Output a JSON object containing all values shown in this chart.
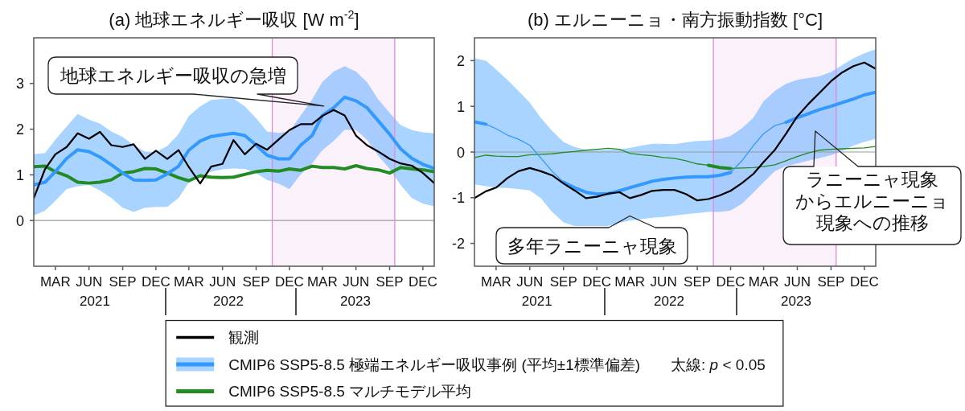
{
  "chart_data": [
    {
      "type": "line",
      "title": "(a) 地球エネルギー吸収 [W m$^{-2}$]",
      "x": [
        "2021-01",
        "2021-02",
        "2021-03",
        "2021-04",
        "2021-05",
        "2021-06",
        "2021-07",
        "2021-08",
        "2021-09",
        "2021-10",
        "2021-11",
        "2021-12",
        "2022-01",
        "2022-02",
        "2022-03",
        "2022-04",
        "2022-05",
        "2022-06",
        "2022-07",
        "2022-08",
        "2022-09",
        "2022-10",
        "2022-11",
        "2022-12",
        "2023-01",
        "2023-02",
        "2023-03",
        "2023-04",
        "2023-05",
        "2023-06",
        "2023-07",
        "2023-08",
        "2023-09",
        "2023-10",
        "2023-11",
        "2023-12",
        "2024-01"
      ],
      "xlim": [
        "2021-01",
        "2024-01"
      ],
      "xticks": [
        {
          "value": "2021-03",
          "label": "MAR"
        },
        {
          "value": "2021-06",
          "label": "JUN"
        },
        {
          "value": "2021-09",
          "label": "SEP"
        },
        {
          "value": "2021-12",
          "label": "DEC"
        },
        {
          "value": "2022-03",
          "label": "MAR"
        },
        {
          "value": "2022-06",
          "label": "JUN"
        },
        {
          "value": "2022-09",
          "label": "SEP"
        },
        {
          "value": "2022-12",
          "label": "DEC"
        },
        {
          "value": "2023-03",
          "label": "MAR"
        },
        {
          "value": "2023-06",
          "label": "JUN"
        },
        {
          "value": "2023-09",
          "label": "SEP"
        },
        {
          "value": "2023-12",
          "label": "DEC"
        }
      ],
      "ylim": [
        -1,
        4
      ],
      "yticks": [
        0,
        1,
        2,
        3
      ],
      "series": [
        {
          "name": "観測",
          "color": "#000000",
          "values": [
            0.49,
            1.13,
            1.45,
            1.61,
            1.91,
            1.79,
            1.94,
            1.65,
            1.61,
            1.67,
            1.35,
            1.53,
            1.35,
            1.54,
            1.17,
            0.81,
            1.18,
            1.24,
            1.76,
            1.45,
            1.68,
            1.55,
            1.77,
            1.98,
            2.11,
            2.11,
            2.29,
            2.42,
            2.3,
            1.86,
            1.65,
            1.51,
            1.35,
            1.25,
            1.2,
            1.04,
            0.82
          ]
        },
        {
          "name": "CMIP6 SSP5-8.5 極端エネルギー吸収事例 (平均±1標準偏差)　　太線: *p* < 0.05",
          "color": "#3399ff",
          "values": [
            0.78,
            0.84,
            1.07,
            1.36,
            1.55,
            1.51,
            1.39,
            1.22,
            1.04,
            0.89,
            0.88,
            0.89,
            1.02,
            1.19,
            1.54,
            1.74,
            1.84,
            1.88,
            1.91,
            1.86,
            1.65,
            1.43,
            1.35,
            1.35,
            1.65,
            1.86,
            2.3,
            2.47,
            2.7,
            2.62,
            2.47,
            2.18,
            1.89,
            1.57,
            1.36,
            1.23,
            1.14
          ],
          "lower": [
            0.11,
            0.22,
            0.43,
            0.69,
            0.75,
            0.78,
            0.66,
            0.49,
            0.28,
            0.19,
            0.28,
            0.3,
            0.3,
            0.49,
            0.84,
            0.98,
            1.07,
            1.12,
            1.14,
            1.13,
            1.04,
            0.89,
            0.81,
            0.69,
            1.01,
            1.25,
            1.54,
            1.74,
            1.99,
            1.98,
            1.77,
            1.42,
            1.13,
            0.78,
            0.49,
            0.37,
            0.31
          ],
          "upper": [
            1.45,
            1.48,
            1.77,
            2.06,
            2.33,
            2.21,
            2.12,
            1.95,
            1.83,
            1.65,
            1.51,
            1.5,
            1.63,
            1.89,
            2.29,
            2.5,
            2.64,
            2.66,
            2.67,
            2.5,
            2.24,
            1.95,
            1.92,
            1.95,
            2.3,
            2.65,
            3.03,
            3.26,
            3.38,
            3.26,
            3.03,
            2.65,
            2.36,
            2.09,
            1.98,
            1.93,
            1.91
          ]
        },
        {
          "name": "CMIP6 SSP5-8.5 マルチモデル平均",
          "color": "#228b22",
          "values": [
            1.18,
            1.19,
            1.07,
            0.98,
            0.84,
            0.82,
            0.84,
            0.89,
            1.04,
            1.07,
            1.14,
            1.13,
            1.04,
            0.94,
            0.87,
            0.98,
            0.95,
            0.94,
            0.95,
            1.01,
            1.07,
            1.1,
            1.08,
            1.13,
            1.1,
            1.19,
            1.16,
            1.16,
            1.13,
            1.2,
            1.14,
            1.11,
            1.04,
            1.16,
            1.13,
            1.11,
            1.07
          ]
        }
      ],
      "bands": [
        {
          "axis": "x",
          "from": "2022-10-15",
          "to": "2023-09-15",
          "color": "#dd88dd"
        }
      ],
      "ref_lines": [
        {
          "axis": "y",
          "value": 0,
          "color": "#999999"
        },
        {
          "axis": "x",
          "value": "2022-10-15",
          "color": "#dd88dd"
        },
        {
          "axis": "x",
          "value": "2023-09-15",
          "color": "#dd88dd"
        }
      ],
      "annotations": [
        "地球エネルギー吸収の急増",
        "2021",
        "2022",
        "2023"
      ],
      "legend": "bottom"
    },
    {
      "type": "line",
      "title": "(b) エルニーニョ・南方振動指数 [°C]",
      "x": [
        "2021-01",
        "2021-02",
        "2021-03",
        "2021-04",
        "2021-05",
        "2021-06",
        "2021-07",
        "2021-08",
        "2021-09",
        "2021-10",
        "2021-11",
        "2021-12",
        "2022-01",
        "2022-02",
        "2022-03",
        "2022-04",
        "2022-05",
        "2022-06",
        "2022-07",
        "2022-08",
        "2022-09",
        "2022-10",
        "2022-11",
        "2022-12",
        "2023-01",
        "2023-02",
        "2023-03",
        "2023-04",
        "2023-05",
        "2023-06",
        "2023-07",
        "2023-08",
        "2023-09",
        "2023-10",
        "2023-11",
        "2023-12",
        "2024-01"
      ],
      "xlim": [
        "2021-01",
        "2024-01"
      ],
      "xticks": [
        {
          "value": "2021-03",
          "label": "MAR"
        },
        {
          "value": "2021-06",
          "label": "JUN"
        },
        {
          "value": "2021-09",
          "label": "SEP"
        },
        {
          "value": "2021-12",
          "label": "DEC"
        },
        {
          "value": "2022-03",
          "label": "MAR"
        },
        {
          "value": "2022-06",
          "label": "JUN"
        },
        {
          "value": "2022-09",
          "label": "SEP"
        },
        {
          "value": "2022-12",
          "label": "DEC"
        },
        {
          "value": "2023-03",
          "label": "MAR"
        },
        {
          "value": "2023-06",
          "label": "JUN"
        },
        {
          "value": "2023-09",
          "label": "SEP"
        },
        {
          "value": "2023-12",
          "label": "DEC"
        }
      ],
      "ylim": [
        -2.5,
        2.5
      ],
      "yticks": [
        -2,
        -1,
        0,
        1,
        2
      ],
      "series": [
        {
          "color": "#000000",
          "values": [
            -1.01,
            -0.86,
            -0.78,
            -0.57,
            -0.42,
            -0.35,
            -0.42,
            -0.51,
            -0.69,
            -0.84,
            -1.01,
            -0.98,
            -0.91,
            -0.88,
            -1.01,
            -0.94,
            -0.85,
            -0.83,
            -0.83,
            -0.92,
            -1.06,
            -1.03,
            -0.95,
            -0.85,
            -0.68,
            -0.48,
            -0.22,
            0.05,
            0.4,
            0.78,
            1.05,
            1.3,
            1.55,
            1.74,
            1.88,
            1.96,
            1.82
          ]
        },
        {
          "color": "#3399ff",
          "values": [
            0.66,
            0.61,
            null,
            null,
            null,
            null,
            null,
            null,
            -0.66,
            -0.78,
            -0.88,
            -0.92,
            -0.91,
            -0.85,
            -0.78,
            -0.71,
            -0.64,
            -0.6,
            -0.57,
            -0.55,
            -0.54,
            -0.54,
            -0.51,
            -0.45,
            null,
            null,
            null,
            null,
            0.65,
            0.75,
            0.84,
            0.93,
            1.0,
            1.08,
            1.16,
            1.25,
            1.31
          ],
          "lower": [
            -0.71,
            -0.75,
            -0.78,
            -0.79,
            -0.81,
            -0.84,
            -1.01,
            -1.31,
            -1.54,
            -1.62,
            -1.62,
            -1.62,
            -1.62,
            -1.55,
            -1.5,
            -1.47,
            -1.44,
            -1.42,
            -1.39,
            -1.36,
            -1.34,
            -1.31,
            -1.31,
            -1.28,
            -1.13,
            -0.89,
            -0.66,
            -0.42,
            -0.31,
            -0.25,
            -0.19,
            -0.13,
            -0.07,
            0.02,
            0.14,
            0.22,
            0.29
          ],
          "upper": [
            2.05,
            2.0,
            1.81,
            1.58,
            1.34,
            1.08,
            0.75,
            0.46,
            0.22,
            0.11,
            0.05,
            0.05,
            0.05,
            0.06,
            0.09,
            0.14,
            0.18,
            0.18,
            0.17,
            0.21,
            0.24,
            0.25,
            0.28,
            0.35,
            0.52,
            0.75,
            1.11,
            1.34,
            1.49,
            1.58,
            1.62,
            1.66,
            1.75,
            1.9,
            2.05,
            2.16,
            2.25
          ]
        },
        {
          "color": "#3399ff",
          "values": [
            null,
            0.61,
            0.51,
            0.37,
            0.28,
            0.15,
            -0.13,
            -0.42,
            -0.66,
            null,
            null,
            null,
            null,
            null,
            null,
            null,
            null,
            null,
            null,
            null,
            null,
            null,
            null,
            -0.45,
            -0.19,
            0.14,
            0.4,
            0.58,
            0.65,
            null,
            null,
            null,
            null,
            null,
            null,
            null,
            null
          ]
        },
        {
          "color": "#228b22",
          "values": [
            null,
            null,
            null,
            null,
            null,
            null,
            null,
            null,
            null,
            null,
            null,
            null,
            null,
            null,
            null,
            null,
            null,
            null,
            null,
            null,
            null,
            -0.29,
            -0.34,
            -0.36,
            null,
            null,
            null,
            null,
            null,
            null,
            null,
            null,
            null,
            null,
            null,
            null,
            null
          ]
        },
        {
          "color": "#228b22",
          "values": [
            -0.12,
            -0.07,
            -0.09,
            -0.1,
            -0.1,
            -0.06,
            -0.05,
            -0.04,
            -0.01,
            0.01,
            0.04,
            0.06,
            0.08,
            0.06,
            -0.03,
            -0.06,
            -0.08,
            -0.12,
            -0.14,
            -0.19,
            -0.26,
            -0.29,
            null,
            -0.36,
            -0.35,
            -0.34,
            -0.32,
            -0.28,
            -0.19,
            -0.1,
            -0.02,
            0.04,
            0.06,
            0.07,
            0.08,
            0.09,
            0.12
          ]
        }
      ],
      "bands": [
        {
          "axis": "x",
          "from": "2022-10-15",
          "to": "2023-09-15",
          "color": "#dd88dd"
        }
      ],
      "ref_lines": [
        {
          "axis": "y",
          "value": 0,
          "color": "#999999"
        },
        {
          "axis": "x",
          "value": "2022-10-15",
          "color": "#dd88dd"
        },
        {
          "axis": "x",
          "value": "2023-09-15",
          "color": "#dd88dd"
        }
      ],
      "annotations": [
        "多年ラニーニャ現象",
        "ラニーニャ現象からエルニーニョ現象への推移",
        "2021",
        "2022",
        "2023"
      ]
    }
  ]
}
